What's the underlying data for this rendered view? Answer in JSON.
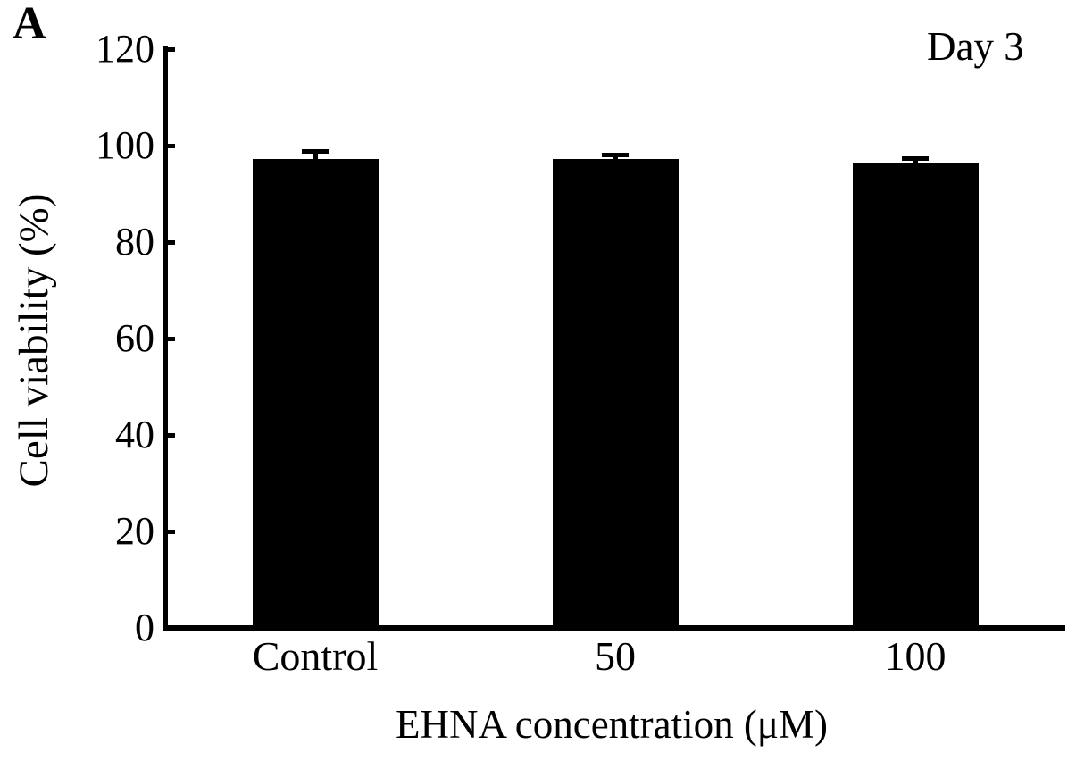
{
  "panel_label": "A",
  "chart_data": {
    "type": "bar",
    "title": "",
    "annotation": "Day 3",
    "categories": [
      "Control",
      "50",
      "100"
    ],
    "values": [
      97.2,
      97.2,
      96.5
    ],
    "errors": [
      1.7,
      0.9,
      1.0
    ],
    "xlabel": "EHNA concentration (μM)",
    "ylabel": "Cell viability (%)",
    "ylim": [
      0,
      120
    ],
    "yticks": [
      0,
      20,
      40,
      60,
      80,
      100,
      120
    ],
    "bar_color": "#000000",
    "axis_color": "#000000",
    "background": "#ffffff",
    "grid": "off",
    "legend": "none"
  }
}
